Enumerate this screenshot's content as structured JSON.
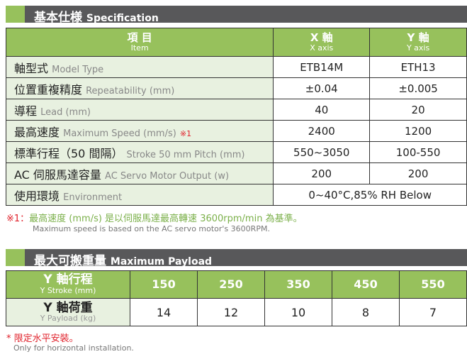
{
  "spec": {
    "title_zh": "基本仕様",
    "title_en": "Specification",
    "header": {
      "item_zh": "項 目",
      "item_en": "Item",
      "x_zh": "X 軸",
      "x_en": "X axis",
      "y_zh": "Y 軸",
      "y_en": "Y axis"
    },
    "rows": [
      {
        "zh": "軸型式",
        "en": "Model Type",
        "note": "",
        "x": "ETB14M",
        "y": "ETH13"
      },
      {
        "zh": "位置重複精度",
        "en": "Repeatability (mm)",
        "note": "",
        "x": "±0.04",
        "y": "±0.005"
      },
      {
        "zh": "導程",
        "en": "Lead (mm)",
        "note": "",
        "x": "40",
        "y": "20"
      },
      {
        "zh": "最高速度",
        "en": "Maximum Speed (mm/s)",
        "note": "※1",
        "x": "2400",
        "y": "1200"
      },
      {
        "zh": "標準行程（50 間隔）",
        "en": "Stroke 50 mm Pitch (mm)",
        "note": "",
        "x": "550~3050",
        "y": "100-550"
      },
      {
        "zh": "AC 伺服馬達容量",
        "en": "AC Servo Motor Output (w)",
        "note": "",
        "x": "200",
        "y": "200"
      }
    ],
    "env": {
      "zh": "使用環境",
      "en": "Environment",
      "value": "0~40°C,85% RH Below"
    },
    "footnote_mark": "※1：",
    "footnote_zh": "最高速度 (mm/s) 是以伺服馬達最高轉速 3600rpm/min 為基準。",
    "footnote_en": "Maximum speed is based on the AC servo motor's 3600RPM."
  },
  "payload": {
    "title_zh": "最大可搬重量",
    "title_en": "Maximum Payload",
    "stroke_zh": "Y 軸行程",
    "stroke_en": "Y Stroke (mm)",
    "load_zh": "Y 軸荷重",
    "load_en": "Y Payload (kg)",
    "strokes": [
      "150",
      "250",
      "350",
      "450",
      "550"
    ],
    "loads": [
      "14",
      "12",
      "10",
      "8",
      "7"
    ],
    "note_zh": "* 限定水平安裝。",
    "note_en": "Only for horizontal installation."
  },
  "colors": {
    "green": "#97c15c",
    "light_green": "#e8f1e0",
    "dark_bar": "#58585a",
    "red": "#e0202a"
  }
}
